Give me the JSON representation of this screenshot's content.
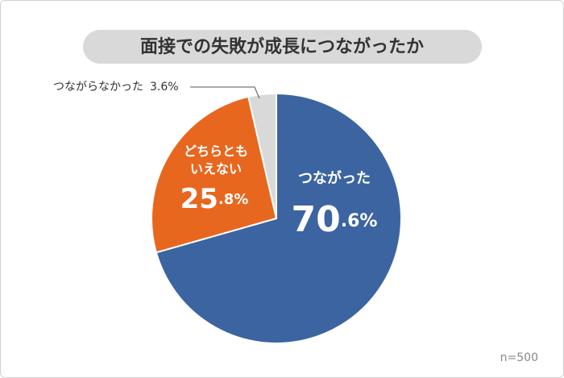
{
  "chart_data": {
    "type": "pie",
    "title": "面接での失敗が成長につながったか",
    "categories": [
      "つながった",
      "どちらともいえない",
      "つながらなかった"
    ],
    "values": [
      70.6,
      25.8,
      3.6
    ],
    "value_labels": [
      "70.6%",
      "25.8%",
      "3.6%"
    ],
    "colors": [
      "#3b64a0",
      "#e8671f",
      "#d9d9d9"
    ],
    "note": "n=500"
  }
}
